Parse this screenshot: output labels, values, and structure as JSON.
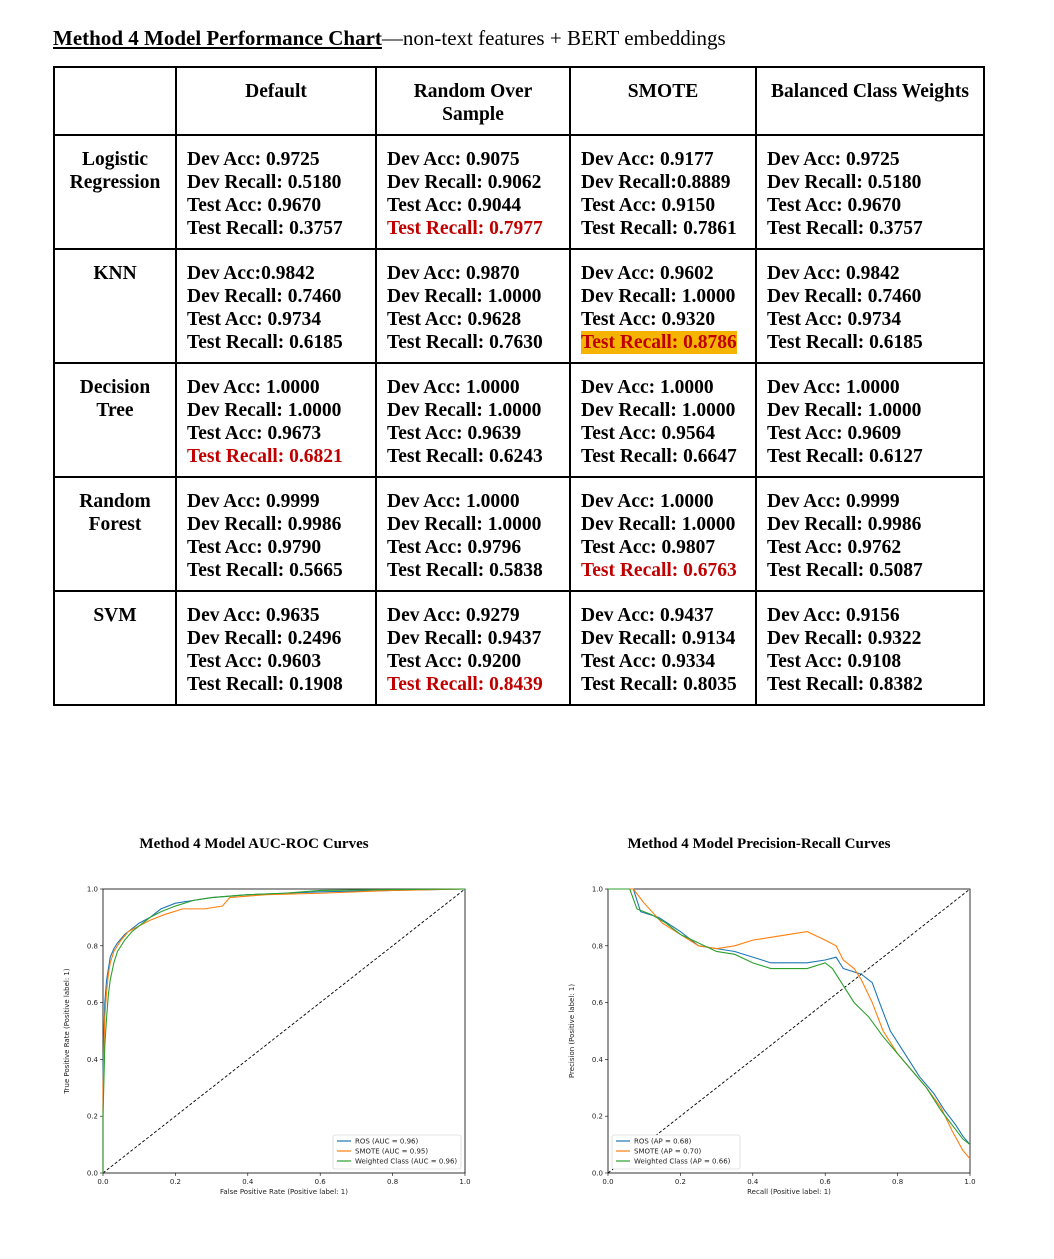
{
  "document": {
    "title_main": "Method 4 Model Performance Chart",
    "title_rest": "—non-text features + BERT embeddings"
  },
  "table": {
    "columns": [
      "",
      "Default",
      "Random Over Sample",
      "SMOTE",
      "Balanced Class Weights"
    ],
    "rows": [
      {
        "model": "Logistic Regression",
        "cells": [
          {
            "lines": [
              "Dev Acc: 0.9725",
              "Dev Recall: 0.5180",
              "Test Acc: 0.9670",
              "Test Recall: 0.3757"
            ],
            "hl": "none"
          },
          {
            "lines": [
              "Dev Acc: 0.9075",
              "Dev Recall: 0.9062",
              "Test Acc: 0.9044",
              "Test Recall: 0.7977"
            ],
            "hl": "red"
          },
          {
            "lines": [
              "Dev Acc: 0.9177",
              "Dev Recall:0.8889",
              "Test Acc: 0.9150",
              "Test Recall: 0.7861"
            ],
            "hl": "none"
          },
          {
            "lines": [
              "Dev Acc: 0.9725",
              "Dev Recall: 0.5180",
              "Test Acc: 0.9670",
              "Test Recall: 0.3757"
            ],
            "hl": "none"
          }
        ]
      },
      {
        "model": "KNN",
        "cells": [
          {
            "lines": [
              "Dev Acc:0.9842",
              "Dev Recall: 0.7460",
              "Test Acc: 0.9734",
              "Test Recall: 0.6185"
            ],
            "hl": "none"
          },
          {
            "lines": [
              "Dev Acc: 0.9870",
              "Dev Recall: 1.0000",
              "Test Acc: 0.9628",
              "Test Recall: 0.7630"
            ],
            "hl": "none"
          },
          {
            "lines": [
              "Dev Acc: 0.9602",
              "Dev Recall: 1.0000",
              "Test Acc: 0.9320",
              "Test Recall: 0.8786"
            ],
            "hl": "highlight"
          },
          {
            "lines": [
              "Dev Acc: 0.9842",
              "Dev Recall: 0.7460",
              "Test Acc: 0.9734",
              "Test Recall: 0.6185"
            ],
            "hl": "none"
          }
        ]
      },
      {
        "model": "Decision Tree",
        "cells": [
          {
            "lines": [
              "Dev Acc: 1.0000",
              "Dev Recall: 1.0000",
              "Test Acc: 0.9673",
              "Test Recall: 0.6821"
            ],
            "hl": "red"
          },
          {
            "lines": [
              "Dev Acc: 1.0000",
              "Dev Recall: 1.0000",
              "Test Acc: 0.9639",
              "Test Recall: 0.6243"
            ],
            "hl": "none"
          },
          {
            "lines": [
              "Dev Acc: 1.0000",
              "Dev Recall: 1.0000",
              "Test Acc: 0.9564",
              "Test Recall: 0.6647"
            ],
            "hl": "none"
          },
          {
            "lines": [
              "Dev Acc: 1.0000",
              "Dev Recall: 1.0000",
              "Test Acc: 0.9609",
              "Test Recall: 0.6127"
            ],
            "hl": "none"
          }
        ]
      },
      {
        "model": "Random Forest",
        "cells": [
          {
            "lines": [
              "Dev Acc: 0.9999",
              "Dev Recall: 0.9986",
              "Test Acc: 0.9790",
              "Test Recall: 0.5665"
            ],
            "hl": "none"
          },
          {
            "lines": [
              "Dev Acc: 1.0000",
              "Dev Recall: 1.0000",
              "Test Acc: 0.9796",
              "Test Recall: 0.5838"
            ],
            "hl": "none"
          },
          {
            "lines": [
              "Dev Acc: 1.0000",
              "Dev Recall: 1.0000",
              "Test Acc: 0.9807",
              "Test Recall:  0.6763"
            ],
            "hl": "red"
          },
          {
            "lines": [
              "Dev Acc: 0.9999",
              "Dev Recall: 0.9986",
              "Test Acc: 0.9762",
              "Test Recall: 0.5087"
            ],
            "hl": "none"
          }
        ]
      },
      {
        "model": "SVM",
        "cells": [
          {
            "lines": [
              "Dev Acc: 0.9635",
              "Dev Recall: 0.2496",
              "Test Acc: 0.9603",
              "Test Recall: 0.1908"
            ],
            "hl": "none"
          },
          {
            "lines": [
              "Dev Acc: 0.9279",
              "Dev Recall: 0.9437",
              "Test Acc: 0.9200",
              "Test Recall: 0.8439"
            ],
            "hl": "red"
          },
          {
            "lines": [
              "Dev Acc: 0.9437",
              "Dev Recall: 0.9134",
              "Test Acc: 0.9334",
              "Test Recall:  0.8035"
            ],
            "hl": "none"
          },
          {
            "lines": [
              "Dev Acc: 0.9156",
              "Dev Recall: 0.9322",
              "Test Acc: 0.9108",
              "Test Recall: 0.8382"
            ],
            "hl": "none"
          }
        ]
      }
    ]
  },
  "colors": {
    "highlight": "#f4b400",
    "red": "#c00000",
    "ros": "#1f77b4",
    "smote": "#ff7f0e",
    "weighted": "#2ca02c"
  },
  "chart_data": [
    {
      "type": "line",
      "title": "Method 4 Model AUC-ROC Curves",
      "xlabel": "False Positive Rate (Positive label: 1)",
      "ylabel": "True Positive Rate (Positive label: 1)",
      "xlim": [
        0,
        1
      ],
      "ylim": [
        0,
        1
      ],
      "xticks": [
        "0.0",
        "0.2",
        "0.4",
        "0.6",
        "0.8",
        "1.0"
      ],
      "yticks": [
        "0.0",
        "0.2",
        "0.4",
        "0.6",
        "0.8",
        "1.0"
      ],
      "legend_position": "lower-right",
      "diagonal": [
        [
          0,
          0
        ],
        [
          1,
          1
        ]
      ],
      "series": [
        {
          "name": "ROS (AUC = 0.96)",
          "color": "#1f77b4",
          "points": [
            [
              0,
              0
            ],
            [
              0,
              0.35
            ],
            [
              0.005,
              0.6
            ],
            [
              0.01,
              0.68
            ],
            [
              0.015,
              0.72
            ],
            [
              0.02,
              0.76
            ],
            [
              0.03,
              0.79
            ],
            [
              0.04,
              0.81
            ],
            [
              0.06,
              0.84
            ],
            [
              0.08,
              0.86
            ],
            [
              0.1,
              0.88
            ],
            [
              0.13,
              0.9
            ],
            [
              0.16,
              0.93
            ],
            [
              0.2,
              0.95
            ],
            [
              0.25,
              0.96
            ],
            [
              0.3,
              0.97
            ],
            [
              0.4,
              0.98
            ],
            [
              0.5,
              0.985
            ],
            [
              0.6,
              0.99
            ],
            [
              0.8,
              0.995
            ],
            [
              1,
              1
            ]
          ]
        },
        {
          "name": "SMOTE (AUC = 0.95)",
          "color": "#ff7f0e",
          "points": [
            [
              0,
              0
            ],
            [
              0,
              0.3
            ],
            [
              0.005,
              0.55
            ],
            [
              0.01,
              0.64
            ],
            [
              0.015,
              0.7
            ],
            [
              0.02,
              0.74
            ],
            [
              0.03,
              0.78
            ],
            [
              0.05,
              0.82
            ],
            [
              0.07,
              0.85
            ],
            [
              0.1,
              0.87
            ],
            [
              0.13,
              0.89
            ],
            [
              0.17,
              0.91
            ],
            [
              0.22,
              0.93
            ],
            [
              0.28,
              0.93
            ],
            [
              0.33,
              0.94
            ],
            [
              0.35,
              0.97
            ],
            [
              0.45,
              0.98
            ],
            [
              0.6,
              0.985
            ],
            [
              0.8,
              0.995
            ],
            [
              1,
              1
            ]
          ]
        },
        {
          "name": "Weighted Class (AUC = 0.96)",
          "color": "#2ca02c",
          "points": [
            [
              0,
              0
            ],
            [
              0,
              0.2
            ],
            [
              0.005,
              0.45
            ],
            [
              0.01,
              0.55
            ],
            [
              0.015,
              0.63
            ],
            [
              0.02,
              0.68
            ],
            [
              0.03,
              0.74
            ],
            [
              0.04,
              0.78
            ],
            [
              0.06,
              0.82
            ],
            [
              0.08,
              0.85
            ],
            [
              0.1,
              0.87
            ],
            [
              0.13,
              0.9
            ],
            [
              0.16,
              0.92
            ],
            [
              0.2,
              0.94
            ],
            [
              0.25,
              0.96
            ],
            [
              0.3,
              0.97
            ],
            [
              0.4,
              0.98
            ],
            [
              0.5,
              0.985
            ],
            [
              0.6,
              0.995
            ],
            [
              0.8,
              0.998
            ],
            [
              1,
              1
            ]
          ]
        }
      ]
    },
    {
      "type": "line",
      "title": "Method 4 Model Precision-Recall Curves",
      "xlabel": "Recall (Positive label: 1)",
      "ylabel": "Precision (Positive label: 1)",
      "xlim": [
        0,
        1
      ],
      "ylim": [
        0,
        1
      ],
      "xticks": [
        "0.0",
        "0.2",
        "0.4",
        "0.6",
        "0.8",
        "1.0"
      ],
      "yticks": [
        "0.0",
        "0.2",
        "0.4",
        "0.6",
        "0.8",
        "1.0"
      ],
      "legend_position": "lower-left",
      "diagonal": [
        [
          0,
          0
        ],
        [
          1,
          1
        ]
      ],
      "series": [
        {
          "name": "ROS (AP = 0.68)",
          "color": "#1f77b4",
          "points": [
            [
              0,
              1
            ],
            [
              0.07,
              1
            ],
            [
              0.09,
              0.92
            ],
            [
              0.14,
              0.9
            ],
            [
              0.2,
              0.85
            ],
            [
              0.25,
              0.8
            ],
            [
              0.3,
              0.79
            ],
            [
              0.35,
              0.78
            ],
            [
              0.4,
              0.76
            ],
            [
              0.45,
              0.74
            ],
            [
              0.5,
              0.74
            ],
            [
              0.55,
              0.74
            ],
            [
              0.6,
              0.75
            ],
            [
              0.63,
              0.76
            ],
            [
              0.65,
              0.72
            ],
            [
              0.7,
              0.7
            ],
            [
              0.73,
              0.67
            ],
            [
              0.75,
              0.6
            ],
            [
              0.78,
              0.5
            ],
            [
              0.82,
              0.42
            ],
            [
              0.86,
              0.34
            ],
            [
              0.9,
              0.28
            ],
            [
              0.93,
              0.22
            ],
            [
              0.96,
              0.17
            ],
            [
              0.98,
              0.13
            ],
            [
              1,
              0.1
            ]
          ]
        },
        {
          "name": "SMOTE (AP = 0.70)",
          "color": "#ff7f0e",
          "points": [
            [
              0,
              1
            ],
            [
              0.07,
              1
            ],
            [
              0.1,
              0.95
            ],
            [
              0.15,
              0.88
            ],
            [
              0.2,
              0.84
            ],
            [
              0.25,
              0.8
            ],
            [
              0.3,
              0.79
            ],
            [
              0.35,
              0.8
            ],
            [
              0.4,
              0.82
            ],
            [
              0.45,
              0.83
            ],
            [
              0.5,
              0.84
            ],
            [
              0.55,
              0.85
            ],
            [
              0.6,
              0.82
            ],
            [
              0.63,
              0.8
            ],
            [
              0.65,
              0.75
            ],
            [
              0.68,
              0.72
            ],
            [
              0.7,
              0.68
            ],
            [
              0.73,
              0.6
            ],
            [
              0.76,
              0.5
            ],
            [
              0.8,
              0.42
            ],
            [
              0.84,
              0.36
            ],
            [
              0.88,
              0.3
            ],
            [
              0.92,
              0.23
            ],
            [
              0.95,
              0.15
            ],
            [
              0.98,
              0.08
            ],
            [
              1,
              0.05
            ]
          ]
        },
        {
          "name": "Weighted Class (AP = 0.66)",
          "color": "#2ca02c",
          "points": [
            [
              0,
              1
            ],
            [
              0.06,
              1
            ],
            [
              0.08,
              0.93
            ],
            [
              0.12,
              0.91
            ],
            [
              0.16,
              0.88
            ],
            [
              0.2,
              0.84
            ],
            [
              0.25,
              0.81
            ],
            [
              0.3,
              0.78
            ],
            [
              0.35,
              0.77
            ],
            [
              0.4,
              0.74
            ],
            [
              0.45,
              0.72
            ],
            [
              0.5,
              0.72
            ],
            [
              0.55,
              0.72
            ],
            [
              0.6,
              0.74
            ],
            [
              0.62,
              0.72
            ],
            [
              0.65,
              0.66
            ],
            [
              0.68,
              0.6
            ],
            [
              0.72,
              0.55
            ],
            [
              0.76,
              0.48
            ],
            [
              0.8,
              0.42
            ],
            [
              0.84,
              0.36
            ],
            [
              0.88,
              0.3
            ],
            [
              0.92,
              0.22
            ],
            [
              0.95,
              0.17
            ],
            [
              0.98,
              0.12
            ],
            [
              1,
              0.1
            ]
          ]
        }
      ]
    }
  ]
}
